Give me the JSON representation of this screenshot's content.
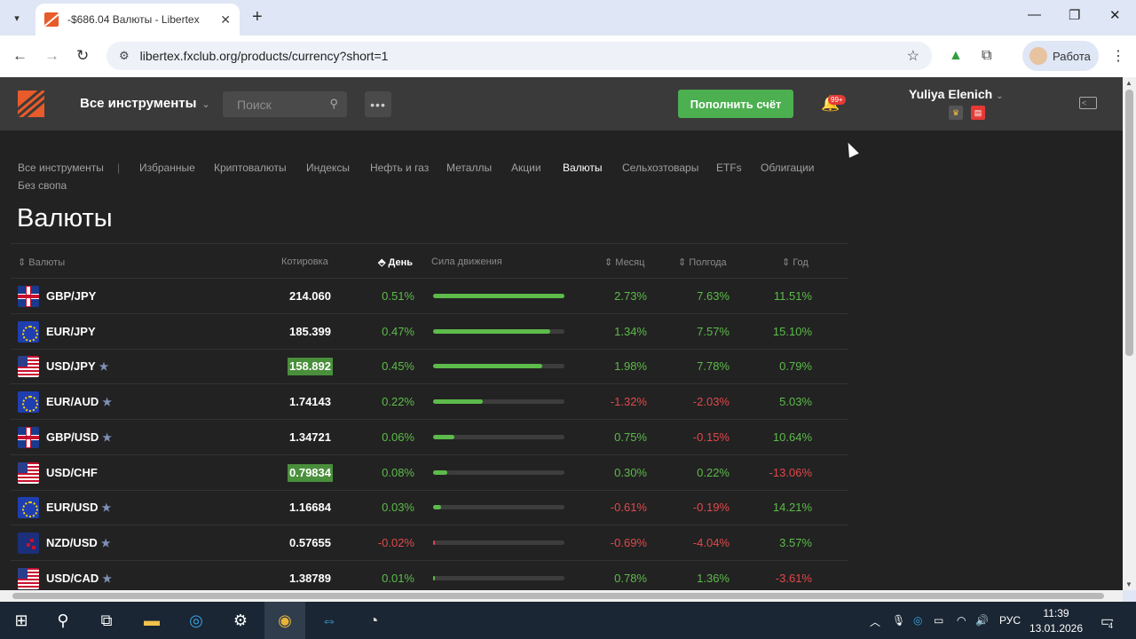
{
  "browser": {
    "tab_title": "-$686.04 Валюты - Libertex",
    "url": "libertex.fxclub.org/products/currency?short=1",
    "profile_label": "Работа"
  },
  "header": {
    "instruments_menu": "Все инструменты",
    "search_placeholder": "Поиск",
    "deposit_button": "Пополнить счёт",
    "notifications_badge": "99+",
    "user_name": "Yuliya Elenich"
  },
  "categories": [
    {
      "label": "Все инструменты",
      "active": false
    },
    {
      "label": "Избранные",
      "active": false
    },
    {
      "label": "Криптовалюты",
      "active": false
    },
    {
      "label": "Индексы",
      "active": false
    },
    {
      "label": "Нефть и газ",
      "active": false
    },
    {
      "label": "Металлы",
      "active": false
    },
    {
      "label": "Акции",
      "active": false
    },
    {
      "label": "Валюты",
      "active": true
    },
    {
      "label": "Сельхозтовары",
      "active": false
    },
    {
      "label": "ETFs",
      "active": false
    },
    {
      "label": "Облигации",
      "active": false
    },
    {
      "label": "Без свопа",
      "active": false
    }
  ],
  "page_title": "Валюты",
  "table": {
    "columns": {
      "instrument": "Валюты",
      "quote": "Котировка",
      "day": "День",
      "strength": "Сила движения",
      "month": "Месяц",
      "half_year": "Полгода",
      "year": "Год"
    },
    "rows": [
      {
        "symbol": "GBP/JPY",
        "flag": "gb",
        "favorite": false,
        "quote": "214.060",
        "highlight": false,
        "day": "0.51%",
        "strength": 1.0,
        "month": "2.73%",
        "half_year": "7.63%",
        "year": "11.51%"
      },
      {
        "symbol": "EUR/JPY",
        "flag": "eu",
        "favorite": false,
        "quote": "185.399",
        "highlight": false,
        "day": "0.47%",
        "strength": 0.89,
        "month": "1.34%",
        "half_year": "7.57%",
        "year": "15.10%"
      },
      {
        "symbol": "USD/JPY",
        "flag": "us",
        "favorite": true,
        "quote": "158.892",
        "highlight": true,
        "day": "0.45%",
        "strength": 0.83,
        "month": "1.98%",
        "half_year": "7.78%",
        "year": "0.79%"
      },
      {
        "symbol": "EUR/AUD",
        "flag": "eu",
        "favorite": true,
        "quote": "1.74143",
        "highlight": false,
        "day": "0.22%",
        "strength": 0.38,
        "month": "-1.32%",
        "half_year": "-2.03%",
        "year": "5.03%"
      },
      {
        "symbol": "GBP/USD",
        "flag": "gb",
        "favorite": true,
        "quote": "1.34721",
        "highlight": false,
        "day": "0.06%",
        "strength": 0.16,
        "month": "0.75%",
        "half_year": "-0.15%",
        "year": "10.64%"
      },
      {
        "symbol": "USD/CHF",
        "flag": "us",
        "favorite": false,
        "quote": "0.79834",
        "highlight": true,
        "day": "0.08%",
        "strength": 0.11,
        "month": "0.30%",
        "half_year": "0.22%",
        "year": "-13.06%"
      },
      {
        "symbol": "EUR/USD",
        "flag": "eu",
        "favorite": true,
        "quote": "1.16684",
        "highlight": false,
        "day": "0.03%",
        "strength": 0.06,
        "month": "-0.61%",
        "half_year": "-0.19%",
        "year": "14.21%"
      },
      {
        "symbol": "NZD/USD",
        "flag": "nz",
        "favorite": true,
        "quote": "0.57655",
        "highlight": false,
        "day": "-0.02%",
        "strength": 0.01,
        "month": "-0.69%",
        "half_year": "-4.04%",
        "year": "3.57%"
      },
      {
        "symbol": "USD/CAD",
        "flag": "us",
        "favorite": true,
        "quote": "1.38789",
        "highlight": false,
        "day": "0.01%",
        "strength": 0.01,
        "month": "0.78%",
        "half_year": "1.36%",
        "year": "-3.61%"
      }
    ]
  },
  "taskbar": {
    "language": "РУС",
    "time": "11:39",
    "date": "13.01.2026",
    "notifications": "4"
  },
  "colors": {
    "positive": "#5cbb4a",
    "negative": "#e0484b",
    "accent_green": "#4caf50",
    "brand_orange": "#e85b2a"
  }
}
